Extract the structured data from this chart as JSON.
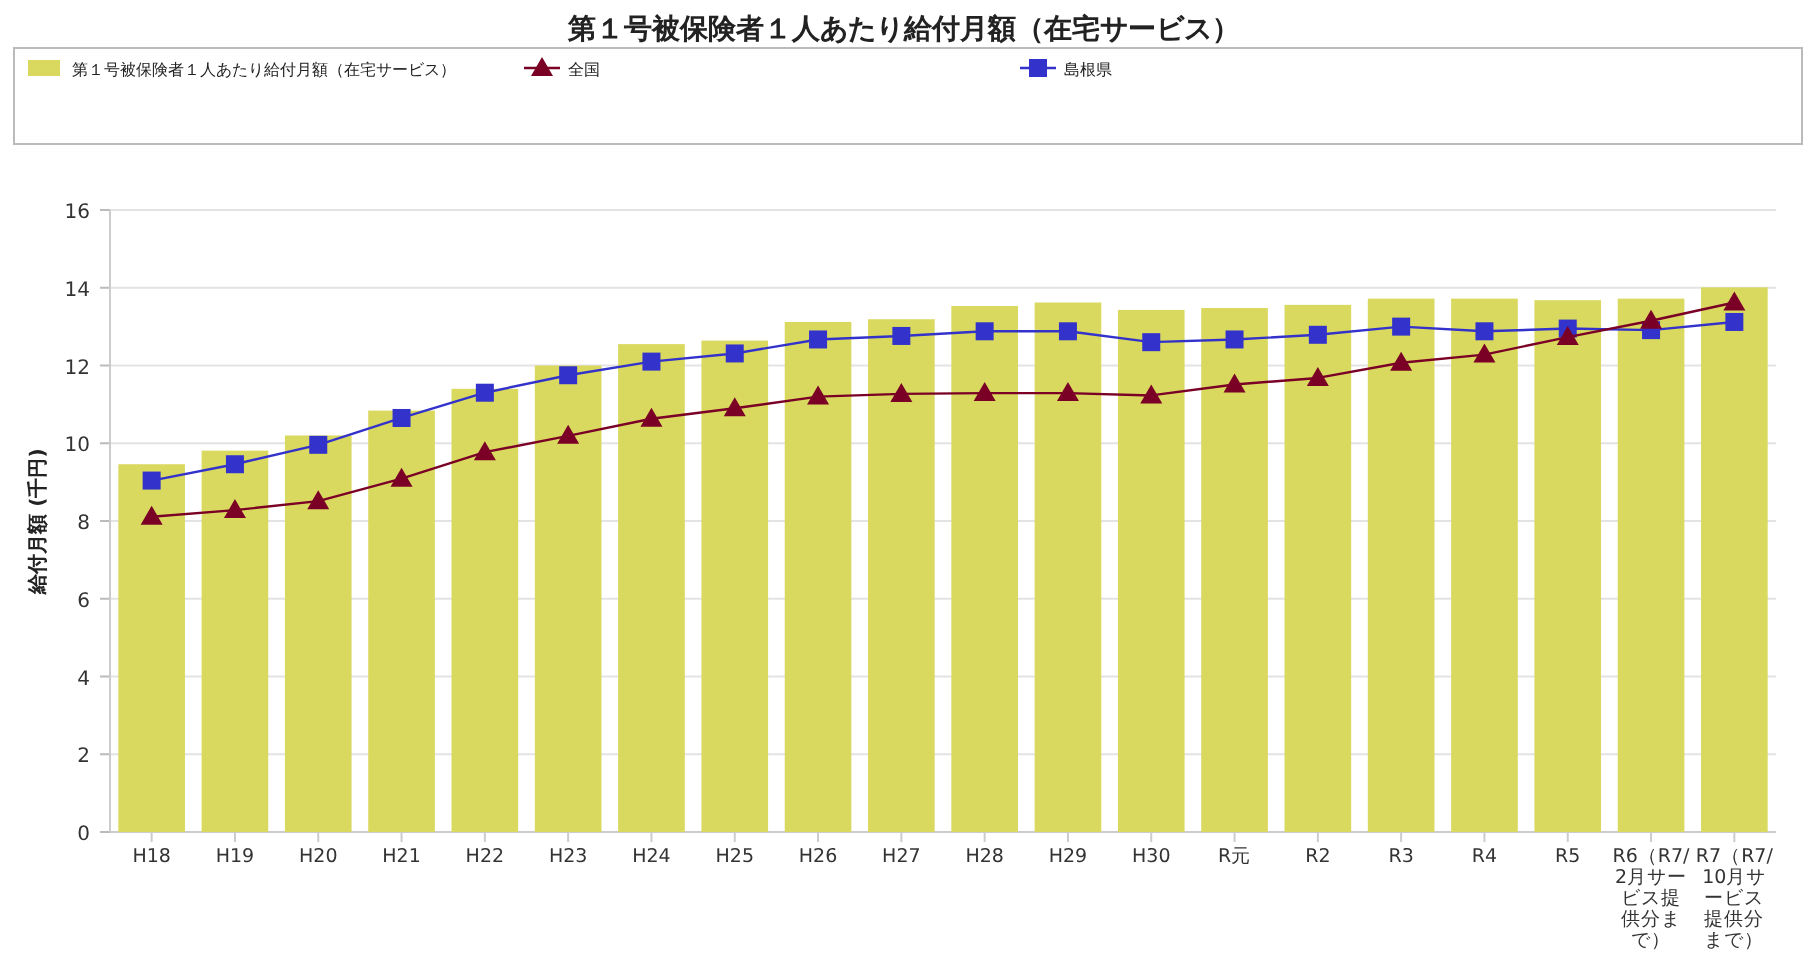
{
  "chart_data": {
    "type": "bar",
    "title": "第１号被保険者１人あたり給付月額（在宅サービス）",
    "ylabel": "給付月額 (千円)",
    "categories": [
      "H18",
      "H19",
      "H20",
      "H21",
      "H22",
      "H23",
      "H24",
      "H25",
      "H26",
      "H27",
      "H28",
      "H29",
      "H30",
      "R元",
      "R2",
      "R3",
      "R4",
      "R5",
      "R6（R7/2月サービス提供分まで）",
      "R7（R7/10月サービス提供分まで）"
    ],
    "series": [
      {
        "name": "第１号被保険者１人あたり給付月額（在宅サービス）",
        "color": "#d9d95f",
        "values": [
          9.46,
          9.81,
          10.2,
          10.84,
          11.4,
          12.0,
          12.55,
          12.64,
          13.12,
          13.19,
          13.53,
          13.62,
          13.43,
          13.48,
          13.56,
          13.72,
          13.72,
          13.68,
          13.72,
          14.01
        ]
      },
      {
        "name": "全国",
        "type": "line",
        "color": "#7a0026",
        "marker": "triangle",
        "values": [
          8.11,
          8.28,
          8.51,
          9.09,
          9.77,
          10.19,
          10.63,
          10.9,
          11.2,
          11.27,
          11.29,
          11.29,
          11.23,
          11.51,
          11.68,
          12.07,
          12.28,
          12.73,
          13.15,
          13.62
        ]
      },
      {
        "name": "島根県",
        "type": "line",
        "color": "#3333cc",
        "marker": "square",
        "values": [
          9.04,
          9.46,
          9.96,
          10.65,
          11.3,
          11.75,
          12.1,
          12.31,
          12.67,
          12.76,
          12.88,
          12.88,
          12.6,
          12.67,
          12.79,
          13.0,
          12.88,
          12.95,
          12.91,
          13.12
        ]
      }
    ],
    "ylim": [
      0,
      16
    ],
    "yticks": [
      0,
      2,
      4,
      6,
      8,
      10,
      12,
      14,
      16
    ],
    "grid": "y",
    "legend": "top"
  }
}
